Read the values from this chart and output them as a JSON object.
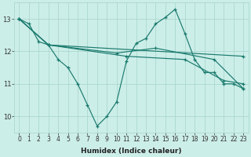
{
  "xlabel": "Humidex (Indice chaleur)",
  "bg_color": "#cceee8",
  "line_color": "#1a7a6e",
  "grid_color": "#aad8d0",
  "xlim": [
    -0.5,
    23.5
  ],
  "ylim": [
    9.5,
    13.5
  ],
  "yticks": [
    10,
    11,
    12,
    13
  ],
  "xticks": [
    0,
    1,
    2,
    3,
    4,
    5,
    6,
    7,
    8,
    9,
    10,
    11,
    12,
    13,
    14,
    15,
    16,
    17,
    18,
    19,
    20,
    21,
    22,
    23
  ],
  "series": [
    {
      "x": [
        0,
        1,
        2,
        3,
        4,
        5,
        6,
        7,
        8,
        9,
        10,
        11,
        12,
        13,
        14,
        15,
        16,
        17,
        18,
        19,
        20,
        21,
        22,
        23
      ],
      "y": [
        13.0,
        12.85,
        12.3,
        12.2,
        11.75,
        11.5,
        11.0,
        10.35,
        9.7,
        10.0,
        10.45,
        11.7,
        12.25,
        12.4,
        12.85,
        13.05,
        13.3,
        12.55,
        11.75,
        11.35,
        11.35,
        11.0,
        11.0,
        10.85
      ]
    },
    {
      "x": [
        0,
        3,
        10,
        14,
        20,
        23
      ],
      "y": [
        13.0,
        12.2,
        11.95,
        12.1,
        11.75,
        10.85
      ]
    },
    {
      "x": [
        0,
        3,
        23
      ],
      "y": [
        13.0,
        12.2,
        11.85
      ]
    },
    {
      "x": [
        0,
        3,
        11,
        17,
        21,
        23
      ],
      "y": [
        13.0,
        12.2,
        11.85,
        11.75,
        11.1,
        11.0
      ]
    }
  ]
}
